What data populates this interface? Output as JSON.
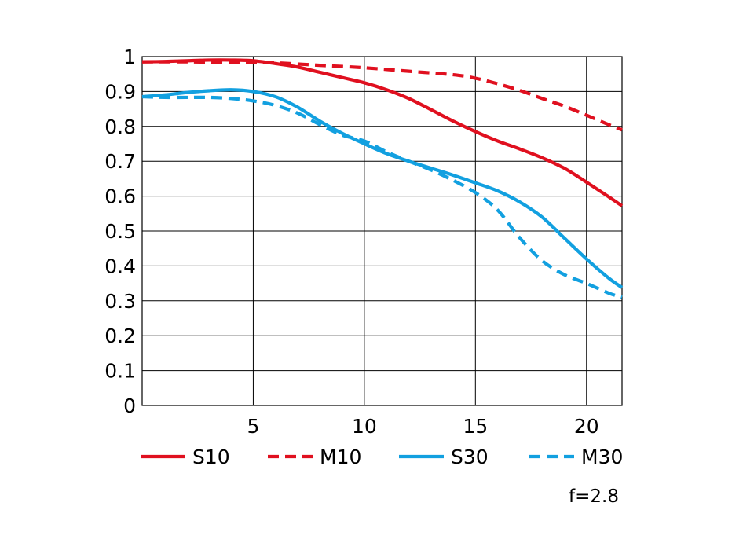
{
  "chart_data": {
    "type": "line",
    "title": "",
    "xlabel": "",
    "ylabel": "",
    "xlim": [
      0,
      21.6
    ],
    "ylim": [
      0,
      1
    ],
    "x_ticks": [
      5,
      10,
      15,
      20
    ],
    "y_ticks": [
      0,
      0.1,
      0.2,
      0.3,
      0.4,
      0.5,
      0.6,
      0.7,
      0.8,
      0.9,
      1
    ],
    "x_tick_labels": [
      "5",
      "10",
      "15",
      "20"
    ],
    "y_tick_labels": [
      "0",
      "0.1",
      "0.2",
      "0.3",
      "0.4",
      "0.5",
      "0.6",
      "0.7",
      "0.8",
      "0.9",
      "1"
    ],
    "grid": true,
    "legend_position": "bottom",
    "note": "f=2.8",
    "series": [
      {
        "name": "S10",
        "color": "#e0101f",
        "style": "solid",
        "points": [
          [
            0,
            0.985
          ],
          [
            1,
            0.986
          ],
          [
            2,
            0.988
          ],
          [
            3,
            0.99
          ],
          [
            4,
            0.99
          ],
          [
            5,
            0.988
          ],
          [
            6,
            0.98
          ],
          [
            7,
            0.97
          ],
          [
            8,
            0.955
          ],
          [
            9,
            0.94
          ],
          [
            10,
            0.925
          ],
          [
            11,
            0.905
          ],
          [
            12,
            0.88
          ],
          [
            13,
            0.848
          ],
          [
            14,
            0.815
          ],
          [
            15,
            0.785
          ],
          [
            16,
            0.758
          ],
          [
            17,
            0.735
          ],
          [
            18,
            0.71
          ],
          [
            19,
            0.68
          ],
          [
            20,
            0.64
          ],
          [
            21,
            0.598
          ],
          [
            21.6,
            0.572
          ]
        ]
      },
      {
        "name": "M10",
        "color": "#e0101f",
        "style": "dashed",
        "points": [
          [
            0,
            0.985
          ],
          [
            2,
            0.985
          ],
          [
            4,
            0.983
          ],
          [
            5,
            0.983
          ],
          [
            6,
            0.982
          ],
          [
            8,
            0.975
          ],
          [
            10,
            0.968
          ],
          [
            12,
            0.958
          ],
          [
            14,
            0.948
          ],
          [
            15,
            0.938
          ],
          [
            16,
            0.922
          ],
          [
            17,
            0.903
          ],
          [
            18,
            0.88
          ],
          [
            19,
            0.858
          ],
          [
            20,
            0.832
          ],
          [
            21,
            0.805
          ],
          [
            21.6,
            0.79
          ]
        ]
      },
      {
        "name": "S30",
        "color": "#12a0e0",
        "style": "solid",
        "points": [
          [
            0,
            0.885
          ],
          [
            1,
            0.89
          ],
          [
            2,
            0.897
          ],
          [
            3,
            0.902
          ],
          [
            4,
            0.905
          ],
          [
            5,
            0.9
          ],
          [
            6,
            0.885
          ],
          [
            7,
            0.855
          ],
          [
            8,
            0.815
          ],
          [
            9,
            0.78
          ],
          [
            10,
            0.75
          ],
          [
            11,
            0.722
          ],
          [
            12,
            0.7
          ],
          [
            13,
            0.68
          ],
          [
            14,
            0.66
          ],
          [
            15,
            0.638
          ],
          [
            16,
            0.615
          ],
          [
            17,
            0.583
          ],
          [
            18,
            0.54
          ],
          [
            19,
            0.48
          ],
          [
            20,
            0.42
          ],
          [
            21,
            0.365
          ],
          [
            21.6,
            0.338
          ]
        ]
      },
      {
        "name": "M30",
        "color": "#12a0e0",
        "style": "dashed",
        "points": [
          [
            0,
            0.885
          ],
          [
            1,
            0.883
          ],
          [
            2,
            0.883
          ],
          [
            3,
            0.883
          ],
          [
            4,
            0.88
          ],
          [
            5,
            0.873
          ],
          [
            6,
            0.86
          ],
          [
            7,
            0.838
          ],
          [
            8,
            0.805
          ],
          [
            9,
            0.775
          ],
          [
            10,
            0.758
          ],
          [
            11,
            0.727
          ],
          [
            12,
            0.7
          ],
          [
            13,
            0.675
          ],
          [
            14,
            0.645
          ],
          [
            15,
            0.61
          ],
          [
            16,
            0.56
          ],
          [
            17,
            0.48
          ],
          [
            18,
            0.415
          ],
          [
            19,
            0.375
          ],
          [
            20,
            0.35
          ],
          [
            21,
            0.322
          ],
          [
            21.6,
            0.31
          ]
        ]
      }
    ]
  }
}
